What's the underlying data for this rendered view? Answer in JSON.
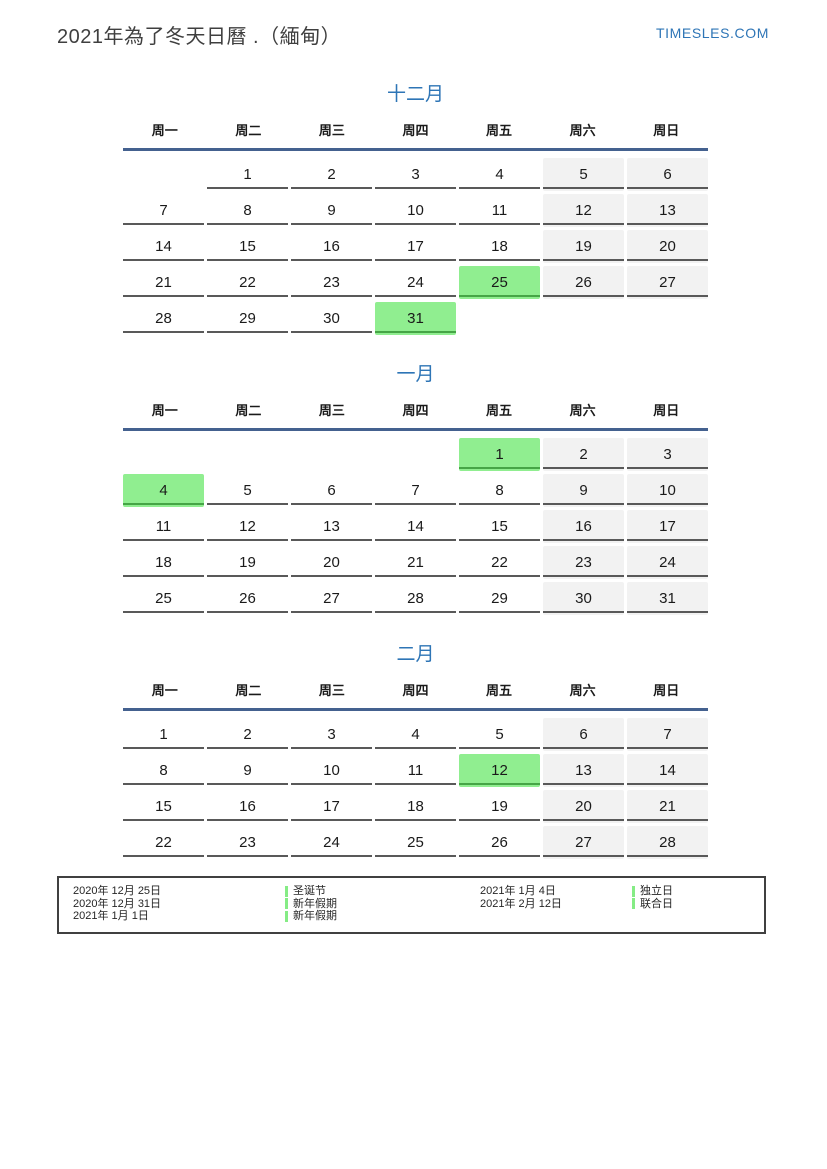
{
  "page": {
    "title": "2021年為了冬天日曆 .（緬甸）",
    "logo": "TIMESLES.COM"
  },
  "weekdays": [
    "周一",
    "周二",
    "周三",
    "周四",
    "周五",
    "周六",
    "周日"
  ],
  "weekend_columns": [
    5,
    6
  ],
  "months": [
    {
      "name": "十二月",
      "key": "dec",
      "rows": [
        [
          "",
          1,
          2,
          3,
          4,
          5,
          6
        ],
        [
          7,
          8,
          9,
          10,
          11,
          12,
          13
        ],
        [
          14,
          15,
          16,
          17,
          18,
          19,
          20
        ],
        [
          21,
          22,
          23,
          24,
          25,
          26,
          27
        ],
        [
          28,
          29,
          30,
          31,
          "",
          "",
          ""
        ]
      ],
      "holidays": [
        25,
        31
      ]
    },
    {
      "name": "一月",
      "key": "jan",
      "rows": [
        [
          "",
          "",
          "",
          "",
          1,
          2,
          3
        ],
        [
          4,
          5,
          6,
          7,
          8,
          9,
          10
        ],
        [
          11,
          12,
          13,
          14,
          15,
          16,
          17
        ],
        [
          18,
          19,
          20,
          21,
          22,
          23,
          24
        ],
        [
          25,
          26,
          27,
          28,
          29,
          30,
          31
        ]
      ],
      "holidays": [
        1,
        4
      ]
    },
    {
      "name": "二月",
      "key": "feb",
      "rows": [
        [
          1,
          2,
          3,
          4,
          5,
          6,
          7
        ],
        [
          8,
          9,
          10,
          11,
          12,
          13,
          14
        ],
        [
          15,
          16,
          17,
          18,
          19,
          20,
          21
        ],
        [
          22,
          23,
          24,
          25,
          26,
          27,
          28
        ]
      ],
      "holidays": [
        12
      ]
    }
  ],
  "legend": {
    "left": [
      {
        "date": "2020年 12月 25日",
        "name": "圣诞节"
      },
      {
        "date": "2020年 12月 31日",
        "name": "新年假期"
      },
      {
        "date": "2021年 1月 1日",
        "name": "新年假期"
      }
    ],
    "right": [
      {
        "date": "2021年 1月 4日",
        "name": "独立日"
      },
      {
        "date": "2021年 2月 12日",
        "name": "联合日"
      }
    ]
  },
  "colors": {
    "accent_blue": "#2e75b6",
    "header_line_blue": "#44618f",
    "holiday_green": "#90ee90",
    "holiday_green_underline": "#46a546",
    "weekend_gray": "#f2f2f2",
    "cell_underline": "#595959",
    "title_text": "#3f3f3f"
  }
}
